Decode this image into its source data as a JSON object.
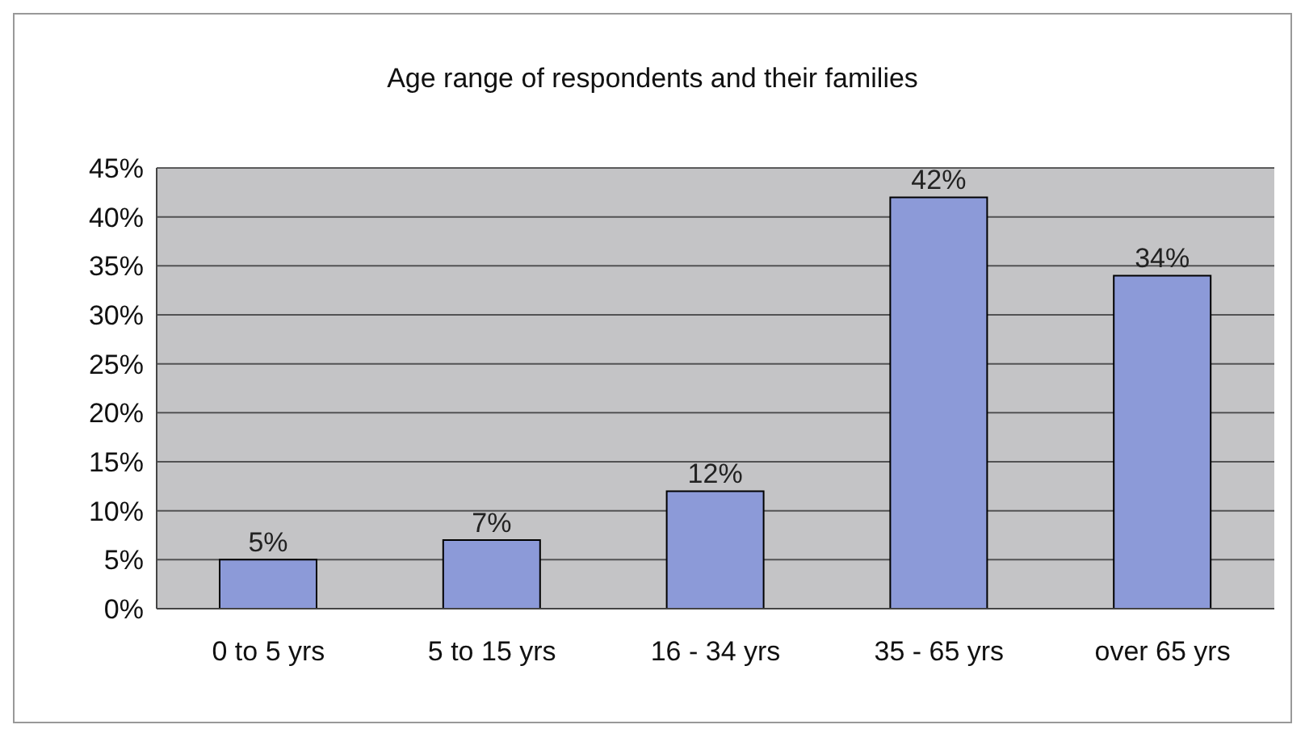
{
  "chart_data": {
    "type": "bar",
    "title": "Age range of respondents and their families",
    "categories": [
      "0 to 5 yrs",
      "5 to 15 yrs",
      "16 - 34 yrs",
      "35 - 65 yrs",
      "over 65 yrs"
    ],
    "values": [
      5,
      7,
      12,
      42,
      34
    ],
    "value_labels": [
      "5%",
      "7%",
      "12%",
      "42%",
      "34%"
    ],
    "color": "#8c9ad8",
    "ylim": [
      0,
      45
    ],
    "yticks": [
      {
        "value": 0,
        "label": "0%"
      },
      {
        "value": 5,
        "label": "5%"
      },
      {
        "value": 10,
        "label": "10%"
      },
      {
        "value": 15,
        "label": "15%"
      },
      {
        "value": 20,
        "label": "20%"
      },
      {
        "value": 25,
        "label": "25%"
      },
      {
        "value": 30,
        "label": "30%"
      },
      {
        "value": 35,
        "label": "35%"
      },
      {
        "value": 40,
        "label": "40%"
      },
      {
        "value": 45,
        "label": "45%"
      }
    ],
    "grid": "y"
  }
}
